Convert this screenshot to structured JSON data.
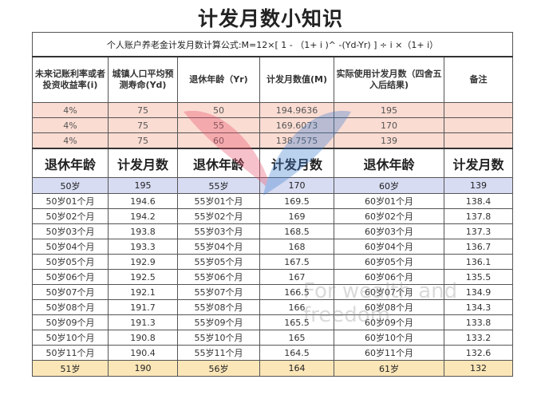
{
  "title": "计发月数小知识",
  "formula": "个人账户养老金计发月数计算公式:M=12×[ 1 - （1+ i )^ -(Yd-Yr) ] ÷ i ×（1+ i）",
  "header": [
    "未来记账利率或者投资收益率(i)",
    "城镇人口平均预测寿命(Yd)",
    "退休年龄（Yr)",
    "计发月数值(M)",
    "实际使用计发月数（四舍五入后结果)",
    "备注"
  ],
  "calc_rows": [
    [
      "4%",
      "75",
      "50",
      "194.9636",
      "195",
      ""
    ],
    [
      "4%",
      "75",
      "55",
      "169.6073",
      "170",
      ""
    ],
    [
      "4%",
      "75",
      "60",
      "138.7575",
      "139",
      ""
    ]
  ],
  "table_header": [
    "退休年龄",
    "计发月数",
    "退休年龄",
    "计发月数",
    "退休年龄",
    "计发月数"
  ],
  "rows": [
    [
      "50岁",
      "195",
      "55岁",
      "170",
      "60岁",
      "139"
    ],
    [
      "50岁01个月",
      "194.6",
      "55岁01个月",
      "169.5",
      "60岁01个月",
      "138.4"
    ],
    [
      "50岁02个月",
      "194.2",
      "55岁02个月",
      "169",
      "60岁02个月",
      "137.8"
    ],
    [
      "50岁03个月",
      "193.8",
      "55岁03个月",
      "168.5",
      "60岁03个月",
      "137.3"
    ],
    [
      "50岁04个月",
      "193.3",
      "55岁04个月",
      "168",
      "60岁04个月",
      "136.7"
    ],
    [
      "50岁05个月",
      "192.9",
      "55岁05个月",
      "167.5",
      "60岁05个月",
      "136.1"
    ],
    [
      "50岁06个月",
      "192.5",
      "55岁06个月",
      "167",
      "60岁06个月",
      "135.5"
    ],
    [
      "50岁07个月",
      "192.1",
      "55岁07个月",
      "166.5",
      "60岁07个月",
      "134.9"
    ],
    [
      "50岁08个月",
      "191.7",
      "55岁08个月",
      "166",
      "60岁08个月",
      "134.3"
    ],
    [
      "50岁09个月",
      "191.3",
      "55岁09个月",
      "165.5",
      "60岁09个月",
      "133.8"
    ],
    [
      "50岁10个月",
      "190.8",
      "55岁10个月",
      "165",
      "60岁10个月",
      "133.2"
    ],
    [
      "50岁11个月",
      "190.4",
      "55岁11个月",
      "164.5",
      "60岁11个月",
      "132.6"
    ],
    [
      "51岁",
      "190",
      "56岁",
      "164",
      "61岁",
      "132"
    ]
  ],
  "watermark": "For wealth and freedom",
  "colors": {
    "calc_rows": "#fbdcd2",
    "first_row": "#d7dcf2",
    "last_row": "#fbe6b8"
  }
}
